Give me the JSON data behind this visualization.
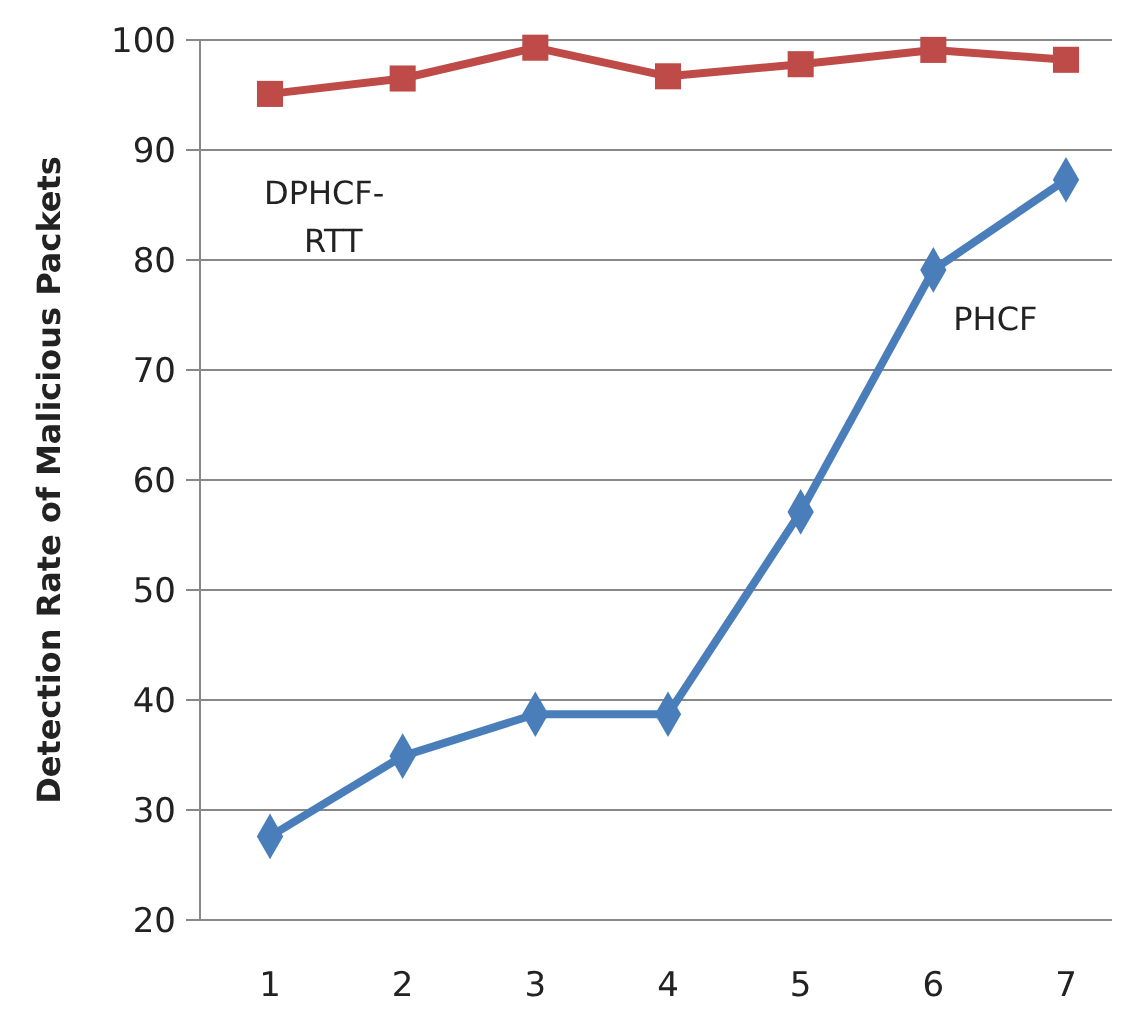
{
  "chart_data": {
    "type": "line",
    "ylabel": "Detection Rate of Malicious Packets",
    "categories": [
      "1",
      "2",
      "3",
      "4",
      "5",
      "6",
      "7"
    ],
    "series": [
      {
        "name": "PHCF",
        "color": "#4a7ebb",
        "marker": "diamond",
        "values": [
          27.6,
          34.9,
          38.7,
          38.7,
          57.1,
          79.1,
          87.3
        ]
      },
      {
        "name": "DPHCF-RTT",
        "color": "#be4b48",
        "marker": "square",
        "values": [
          95.1,
          96.5,
          99.3,
          96.7,
          97.8,
          99.1,
          98.2
        ]
      }
    ],
    "ylim": [
      20,
      100
    ],
    "yticks": [
      20,
      30,
      40,
      50,
      60,
      70,
      80,
      90,
      100
    ],
    "grid": "y",
    "legend": false
  }
}
